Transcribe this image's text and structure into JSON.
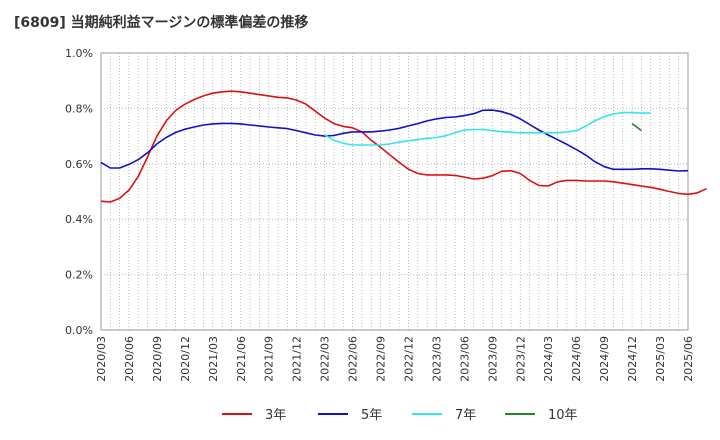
{
  "chart_data": {
    "type": "line",
    "title": "[6809]  当期純利益マージンの標準偏差の推移",
    "xlabel": "",
    "ylabel": "",
    "ylim": [
      0,
      1.0
    ],
    "yticks": [
      "0.0%",
      "0.2%",
      "0.4%",
      "0.6%",
      "0.8%",
      "1.0%"
    ],
    "xticks": [
      "2020/03",
      "2020/06",
      "2020/09",
      "2020/12",
      "2021/03",
      "2021/06",
      "2021/09",
      "2021/12",
      "2022/03",
      "2022/06",
      "2022/09",
      "2022/12",
      "2023/03",
      "2023/06",
      "2023/09",
      "2023/12",
      "2024/03",
      "2024/06",
      "2024/09",
      "2024/12",
      "2025/03",
      "2025/06"
    ],
    "grid": true,
    "legend_position": "bottom",
    "series": [
      {
        "name": "3年",
        "color": "#dd1111",
        "start_month": "2020/03",
        "values": [
          0.465,
          0.462,
          0.475,
          0.505,
          0.555,
          0.625,
          0.7,
          0.755,
          0.792,
          0.815,
          0.832,
          0.845,
          0.855,
          0.86,
          0.862,
          0.86,
          0.855,
          0.85,
          0.845,
          0.84,
          0.838,
          0.83,
          0.815,
          0.79,
          0.765,
          0.745,
          0.735,
          0.73,
          0.715,
          0.685,
          0.66,
          0.632,
          0.605,
          0.58,
          0.565,
          0.56,
          0.56,
          0.56,
          0.558,
          0.552,
          0.545,
          0.548,
          0.557,
          0.573,
          0.575,
          0.565,
          0.54,
          0.522,
          0.52,
          0.535,
          0.54,
          0.54,
          0.538,
          0.538,
          0.538,
          0.535,
          0.53,
          0.525,
          0.52,
          0.515,
          0.508,
          0.5,
          0.493,
          0.49,
          0.495,
          0.51
        ]
      },
      {
        "name": "5年",
        "color": "#1111cc",
        "start_month": "2020/03",
        "values": [
          0.605,
          0.585,
          0.585,
          0.598,
          0.615,
          0.64,
          0.672,
          0.695,
          0.713,
          0.725,
          0.733,
          0.74,
          0.744,
          0.746,
          0.746,
          0.744,
          0.74,
          0.737,
          0.733,
          0.73,
          0.727,
          0.72,
          0.712,
          0.704,
          0.7,
          0.702,
          0.71,
          0.715,
          0.715,
          0.715,
          0.718,
          0.722,
          0.728,
          0.737,
          0.745,
          0.755,
          0.762,
          0.767,
          0.769,
          0.774,
          0.781,
          0.793,
          0.794,
          0.788,
          0.778,
          0.762,
          0.742,
          0.722,
          0.704,
          0.687,
          0.67,
          0.652,
          0.632,
          0.608,
          0.59,
          0.58,
          0.58,
          0.58,
          0.582,
          0.582,
          0.58,
          0.577,
          0.574,
          0.575
        ]
      },
      {
        "name": "7年",
        "color": "#33e6ee",
        "start_month": "2022/03",
        "values": [
          0.705,
          0.685,
          0.674,
          0.668,
          0.668,
          0.668,
          0.668,
          0.672,
          0.678,
          0.683,
          0.688,
          0.692,
          0.695,
          0.701,
          0.712,
          0.722,
          0.724,
          0.724,
          0.72,
          0.716,
          0.714,
          0.712,
          0.712,
          0.712,
          0.712,
          0.712,
          0.715,
          0.72,
          0.735,
          0.755,
          0.77,
          0.78,
          0.785,
          0.785,
          0.783,
          0.783
        ]
      },
      {
        "name": "10年",
        "color": "#228822",
        "start_month": "2024/12",
        "values": [
          0.745,
          0.72
        ]
      }
    ]
  }
}
